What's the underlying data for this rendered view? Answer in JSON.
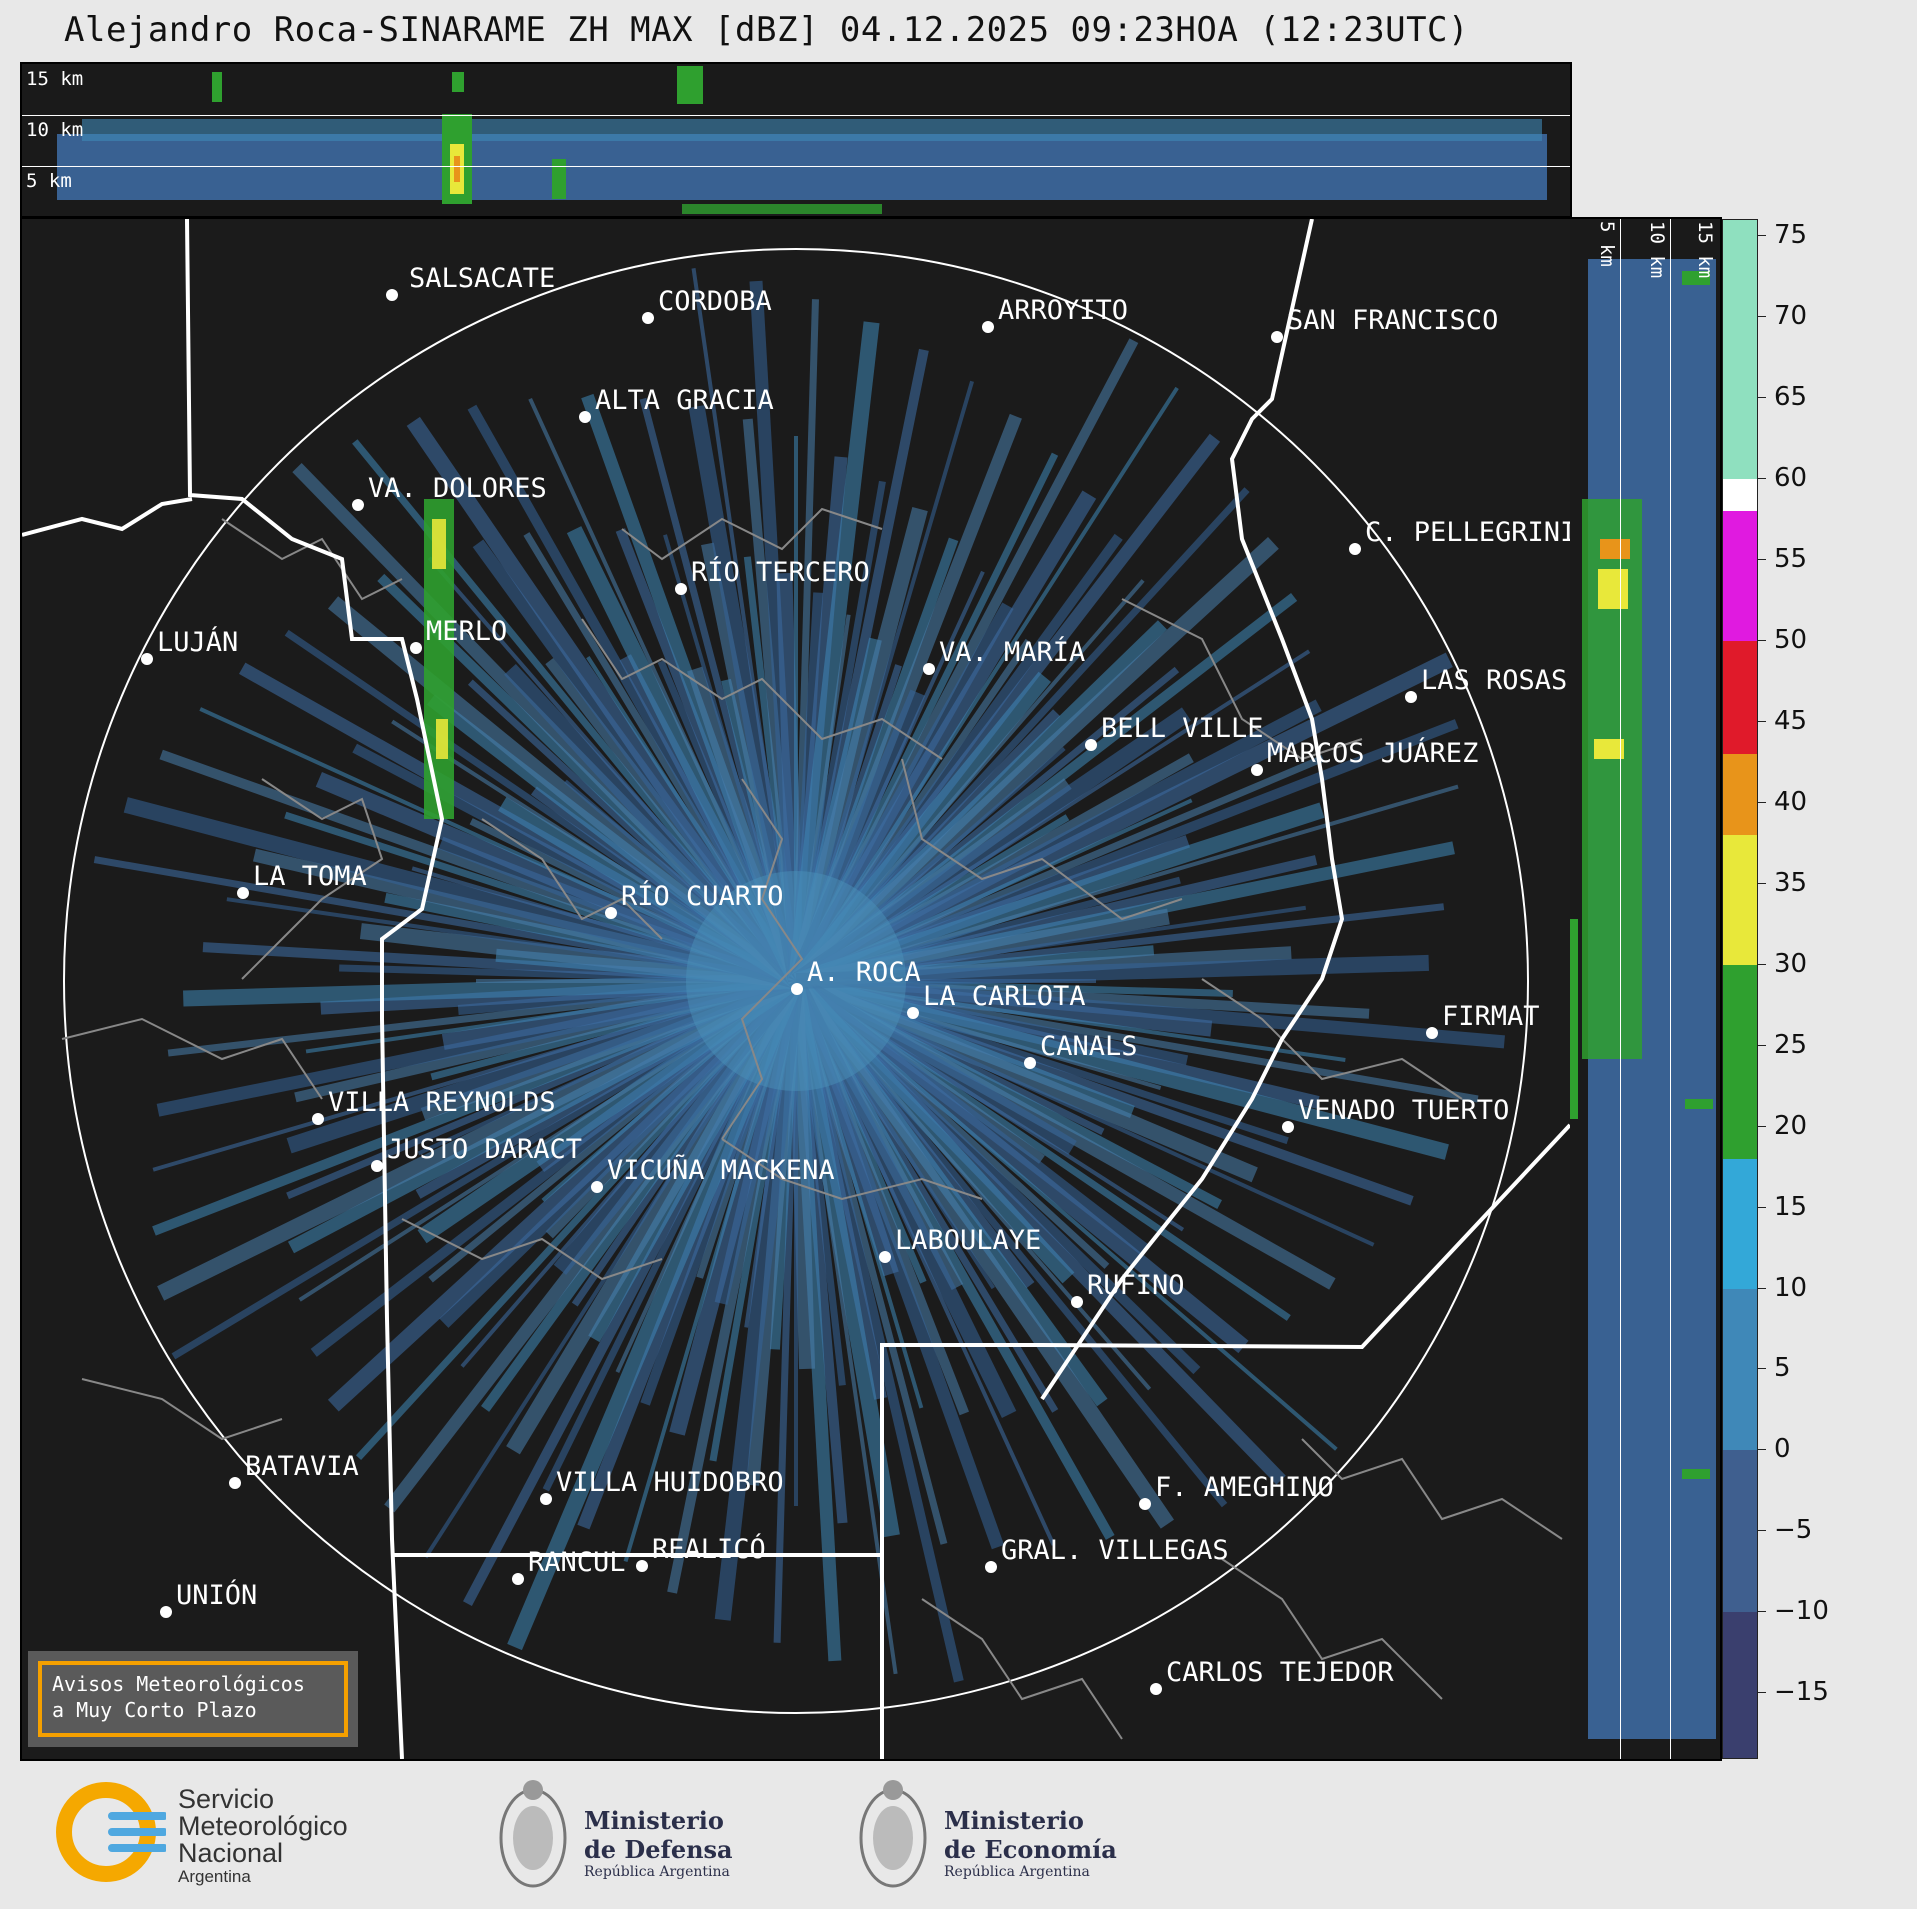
{
  "title": "Alejandro Roca-SINARAME ZH MAX [dBZ] 04.12.2025 09:23HOA (12:23UTC)",
  "top_strip": {
    "labels": [
      "15 km",
      "10 km",
      "5 km"
    ]
  },
  "right_strip": {
    "labels": [
      "5 km",
      "10 km",
      "15 km"
    ]
  },
  "colorbar": {
    "unit": "dBZ",
    "range": [
      -19,
      76
    ],
    "ticks": [
      "75",
      "70",
      "65",
      "60",
      "55",
      "50",
      "45",
      "40",
      "35",
      "30",
      "25",
      "20",
      "15",
      "10",
      "5",
      "0",
      "−5",
      "−10",
      "−15"
    ],
    "colors": {
      "very_low": "#3a3f6e",
      "low": "#3f5f8f",
      "mid_blue": "#3f88b8",
      "cyan": "#33a8d8",
      "green": "#2fa02f",
      "yellow": "#e8e83a",
      "orange": "#e8941a",
      "red": "#e01a2a",
      "magenta": "#e01ae0",
      "white": "#ffffff",
      "mint": "#8fe0bf"
    }
  },
  "cities": [
    {
      "name": "SALSACATE"
    },
    {
      "name": "CORDOBA"
    },
    {
      "name": "ARROYITO"
    },
    {
      "name": "SAN FRANCISCO"
    },
    {
      "name": "ALTA GRACIA"
    },
    {
      "name": "VA. DOLORES"
    },
    {
      "name": "C. PELLEGRINI"
    },
    {
      "name": "RÍO TERCERO"
    },
    {
      "name": "LUJÁN"
    },
    {
      "name": "MERLO"
    },
    {
      "name": "VA. MARÍA"
    },
    {
      "name": "LAS ROSAS"
    },
    {
      "name": "BELL VILLE"
    },
    {
      "name": "MARCOS JUÁREZ"
    },
    {
      "name": "LA TOMA"
    },
    {
      "name": "RÍO CUARTO"
    },
    {
      "name": "A. ROCA"
    },
    {
      "name": "LA CARLOTA"
    },
    {
      "name": "FIRMAT"
    },
    {
      "name": "CANALS"
    },
    {
      "name": "VILLA REYNOLDS"
    },
    {
      "name": "VENADO TUERTO"
    },
    {
      "name": "JUSTO DARACT"
    },
    {
      "name": "VICUÑA MACKENA"
    },
    {
      "name": "LABOULAYE"
    },
    {
      "name": "RUFINO"
    },
    {
      "name": "BATAVIA"
    },
    {
      "name": "VILLA HUIDOBRO"
    },
    {
      "name": "F. AMEGHINO"
    },
    {
      "name": "REALICÓ"
    },
    {
      "name": "RANCUL"
    },
    {
      "name": "GRAL. VILLEGAS"
    },
    {
      "name": "UNIÓN"
    },
    {
      "name": "CARLOS TEJEDOR"
    }
  ],
  "warning_box": {
    "line1": "Avisos Meteorológicos",
    "line2": "a Muy Corto Plazo"
  },
  "footer": {
    "smn": {
      "line1": "Servicio",
      "line2": "Meteorológico",
      "line3": "Nacional",
      "line4": "Argentina"
    },
    "defensa": {
      "line1": "Ministerio",
      "line2": "de Defensa",
      "line3": "República Argentina"
    },
    "economia": {
      "line1": "Ministerio",
      "line2": "de Economía",
      "line3": "República Argentina"
    }
  }
}
